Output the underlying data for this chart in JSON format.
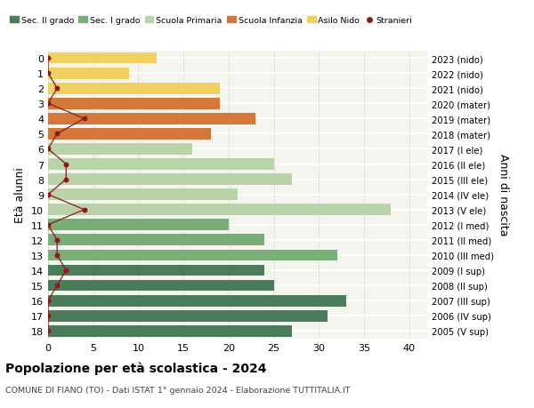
{
  "ages": [
    18,
    17,
    16,
    15,
    14,
    13,
    12,
    11,
    10,
    9,
    8,
    7,
    6,
    5,
    4,
    3,
    2,
    1,
    0
  ],
  "years": [
    "2005 (V sup)",
    "2006 (IV sup)",
    "2007 (III sup)",
    "2008 (II sup)",
    "2009 (I sup)",
    "2010 (III med)",
    "2011 (II med)",
    "2012 (I med)",
    "2013 (V ele)",
    "2014 (IV ele)",
    "2015 (III ele)",
    "2016 (II ele)",
    "2017 (I ele)",
    "2018 (mater)",
    "2019 (mater)",
    "2020 (mater)",
    "2021 (nido)",
    "2022 (nido)",
    "2023 (nido)"
  ],
  "bar_values": [
    27,
    31,
    33,
    25,
    24,
    32,
    24,
    20,
    38,
    21,
    27,
    25,
    16,
    18,
    23,
    19,
    19,
    9,
    12
  ],
  "bar_colors": [
    "#4a7c59",
    "#4a7c59",
    "#4a7c59",
    "#4a7c59",
    "#4a7c59",
    "#7aad78",
    "#7aad78",
    "#7aad78",
    "#b8d4a8",
    "#b8d4a8",
    "#b8d4a8",
    "#b8d4a8",
    "#b8d4a8",
    "#d4783a",
    "#d4783a",
    "#d4783a",
    "#f0d060",
    "#f0d060",
    "#f0d060"
  ],
  "stranieri_values": [
    0,
    0,
    0,
    1,
    2,
    1,
    1,
    0,
    4,
    0,
    2,
    2,
    0,
    1,
    4,
    0,
    1,
    0,
    0
  ],
  "stranieri_color": "#8b1a1a",
  "legend_labels": [
    "Sec. II grado",
    "Sec. I grado",
    "Scuola Primaria",
    "Scuola Infanzia",
    "Asilo Nido",
    "Stranieri"
  ],
  "legend_colors": [
    "#4a7c59",
    "#7aad78",
    "#b8d4a8",
    "#d4783a",
    "#f0d060",
    "#8b1a1a"
  ],
  "ylabel": "Età alunni",
  "ylabel_right": "Anni di nascita",
  "title": "Popolazione per età scolastica - 2024",
  "subtitle": "COMUNE DI FIANO (TO) - Dati ISTAT 1° gennaio 2024 - Elaborazione TUTTITALIA.IT",
  "xlim": [
    0,
    42
  ],
  "xticks": [
    0,
    5,
    10,
    15,
    20,
    25,
    30,
    35,
    40
  ],
  "background_color": "#f5f5f0",
  "fig_color": "#ffffff"
}
